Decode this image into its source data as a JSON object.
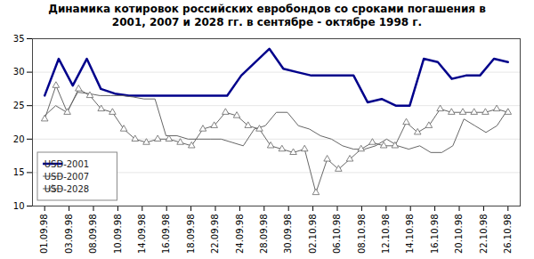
{
  "chart_data": {
    "type": "line",
    "title": "Динамика котировок российских евробондов со сроками погашения в\n2001, 2007 и 2028 гг. в сентябре - октябре 1998 г.",
    "xlim": [
      -0.5,
      19.5
    ],
    "xticks": [
      {
        "value": 0,
        "label": "01.09.98"
      },
      {
        "value": 1,
        "label": "03.09.98"
      },
      {
        "value": 2,
        "label": "08.09.98"
      },
      {
        "value": 3,
        "label": "10.09.98"
      },
      {
        "value": 4,
        "label": "14.09.98"
      },
      {
        "value": 5,
        "label": "16.09.98"
      },
      {
        "value": 6,
        "label": "18.09.98"
      },
      {
        "value": 7,
        "label": "22.09.98"
      },
      {
        "value": 8,
        "label": "24.09.98"
      },
      {
        "value": 9,
        "label": "28.09.98"
      },
      {
        "value": 10,
        "label": "30.09.98"
      },
      {
        "value": 11,
        "label": "02.10.98"
      },
      {
        "value": 12,
        "label": "06.10.98"
      },
      {
        "value": 13,
        "label": "08.10.98"
      },
      {
        "value": 14,
        "label": "12.10.98"
      },
      {
        "value": 15,
        "label": "14.10.98"
      },
      {
        "value": 16,
        "label": "16.10.98"
      },
      {
        "value": 17,
        "label": "20.10.98"
      },
      {
        "value": 18,
        "label": "22.10.98"
      },
      {
        "value": 19,
        "label": "26.10.98"
      }
    ],
    "ylim": [
      10,
      35
    ],
    "yticks": [
      10,
      15,
      20,
      25,
      30,
      35
    ],
    "grid": true,
    "legend": "lower left",
    "series": [
      {
        "name": "USD-2001",
        "color": "#00008B",
        "x": [
          0,
          0.5758,
          1.1515,
          1.7273,
          2.303,
          2.8788,
          3.4545,
          4.0303,
          4.6061,
          5.1818,
          5.7576,
          6.3333,
          6.9091,
          7.4848,
          8.0606,
          8.6364,
          9.2121,
          9.7879,
          10.3636,
          10.9394,
          11.5152,
          12.0909,
          12.6667,
          13.2424,
          13.8182,
          14.3939,
          14.9697,
          15.5455,
          16.1212,
          16.697,
          17.2727,
          17.8485,
          18.4242,
          19
        ],
        "values": [
          26.5,
          32.0,
          28.0,
          32.0,
          27.5,
          26.8,
          26.5,
          26.5,
          26.5,
          26.5,
          26.5,
          26.5,
          26.5,
          26.5,
          29.5,
          31.5,
          33.5,
          30.5,
          30.0,
          29.5,
          29.5,
          29.5,
          29.5,
          25.5,
          26.0,
          25.0,
          25.0,
          32.0,
          31.5,
          29.0,
          29.5,
          29.5,
          32.0,
          31.5
        ]
      },
      {
        "name": "USD-2007",
        "color": "#666666",
        "x": [
          0,
          0.4524,
          0.9048,
          1.3571,
          1.8095,
          2.2619,
          2.7143,
          3.1667,
          3.619,
          4.0714,
          4.5238,
          4.9762,
          5.4286,
          5.881,
          6.3333,
          6.7857,
          7.2381,
          7.6905,
          8.1429,
          8.5952,
          9.0476,
          9.5,
          9.9524,
          10.4048,
          10.8571,
          11.3095,
          11.7619,
          12.2143,
          12.6667,
          13.119,
          13.5714,
          14.0238,
          14.4762,
          14.9286,
          15.381,
          15.8333,
          16.2857,
          16.7381,
          17.1905,
          17.6429,
          18.0952,
          18.5476,
          19
        ],
        "values": [
          23.5,
          25.0,
          24.0,
          27.0,
          26.8,
          26.5,
          26.5,
          26.5,
          26.3,
          26.0,
          26.0,
          20.5,
          20.5,
          20.0,
          20.0,
          20.0,
          20.0,
          19.5,
          19.0,
          21.5,
          22.0,
          24.0,
          24.0,
          22.0,
          21.5,
          20.5,
          20.0,
          19.0,
          18.5,
          18.5,
          19.0,
          20.0,
          19.0,
          18.5,
          19.0,
          18.0,
          18.0,
          19.0,
          23.0,
          22.0,
          21.0,
          22.0,
          24.5
        ]
      },
      {
        "name": "USD-2028",
        "color": "#666666",
        "marker": "triangle",
        "x": [
          0,
          0.4634,
          0.9268,
          1.3902,
          1.8537,
          2.3171,
          2.7805,
          3.2439,
          3.7073,
          4.1707,
          4.6341,
          5.0976,
          5.561,
          6.0244,
          6.4878,
          6.9512,
          7.4146,
          7.878,
          8.3415,
          8.8049,
          9.2683,
          9.7317,
          10.1951,
          10.6585,
          11.122,
          11.5854,
          12.0488,
          12.5122,
          12.9756,
          13.439,
          13.9024,
          14.3659,
          14.8293,
          15.2927,
          15.7561,
          16.2195,
          16.6829,
          17.1463,
          17.6098,
          18.0732,
          18.5366,
          19
        ],
        "values": [
          23.0,
          28.0,
          24.0,
          27.5,
          26.5,
          24.5,
          24.0,
          21.5,
          20.0,
          19.5,
          20.0,
          20.0,
          19.5,
          19.0,
          21.5,
          22.0,
          24.0,
          23.5,
          22.0,
          21.5,
          19.0,
          18.5,
          18.0,
          18.5,
          12.0,
          17.0,
          15.5,
          17.0,
          18.5,
          19.5,
          19.0,
          19.0,
          22.5,
          21.0,
          22.0,
          24.5,
          24.0,
          24.0,
          24.0,
          24.0,
          24.5,
          24.0
        ]
      }
    ]
  }
}
